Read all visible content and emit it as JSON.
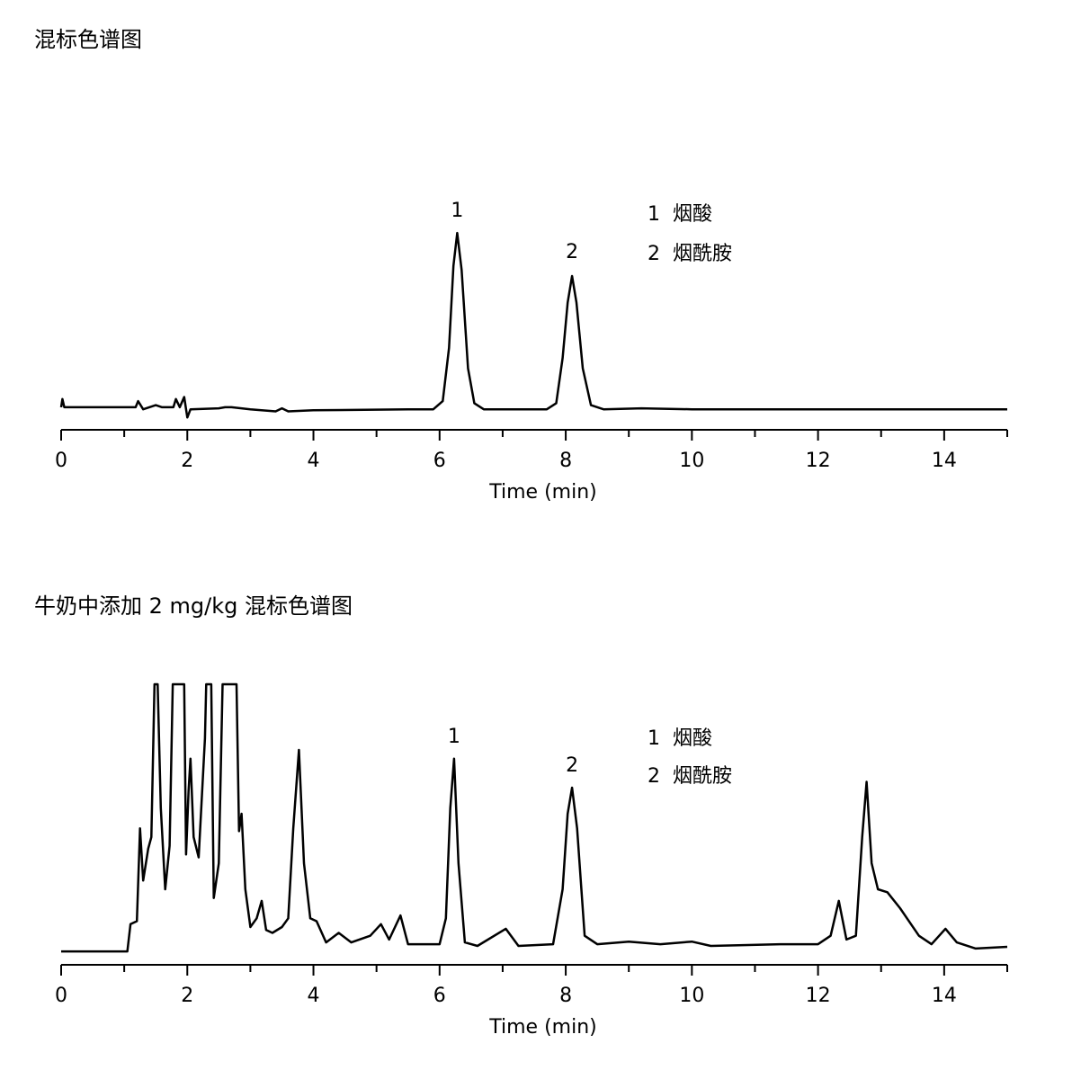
{
  "chart_data": [
    {
      "type": "line",
      "title": "混标色谱图",
      "xlabel": "Time (min)",
      "x": [
        0,
        0.02,
        0.05,
        1.0,
        1.18,
        1.22,
        1.3,
        1.5,
        1.6,
        1.78,
        1.82,
        1.88,
        1.95,
        2.0,
        2.05,
        2.5,
        2.6,
        2.7,
        3.0,
        3.4,
        3.5,
        3.6,
        4.0,
        5.5,
        5.9,
        6.05,
        6.15,
        6.22,
        6.28,
        6.35,
        6.45,
        6.55,
        6.7,
        7.7,
        7.85,
        7.95,
        8.03,
        8.1,
        8.17,
        8.27,
        8.4,
        8.6,
        9.2,
        10,
        15
      ],
      "series": [
        {
          "color": "#000000",
          "values": [
            11,
            15,
            11,
            11,
            11,
            14,
            10,
            12,
            11,
            11,
            15,
            11,
            16,
            6,
            10,
            10.5,
            11,
            11,
            10,
            9,
            10.5,
            9,
            9.5,
            10,
            10,
            14,
            40,
            80,
            96,
            78,
            30,
            13,
            10,
            10,
            13,
            35,
            62,
            75,
            62,
            30,
            12,
            10,
            10.5,
            10,
            10
          ]
        }
      ],
      "xlim": [
        0,
        15
      ],
      "xticks": [
        0,
        2,
        4,
        6,
        8,
        10,
        12,
        14
      ],
      "xminor_ticks": [
        1,
        3,
        5,
        7,
        9,
        11,
        13,
        15
      ],
      "ylim": [
        0,
        100
      ],
      "annotations": [
        {
          "text": "1",
          "x": 6.28
        },
        {
          "text": "2",
          "x": 8.1
        }
      ],
      "legend": [
        "1  烟酸",
        "2  烟酰胺"
      ]
    },
    {
      "type": "line",
      "title": "牛奶中添加 2 mg/kg 混标色谱图",
      "xlabel": "Time (min)",
      "x": [
        0,
        1.05,
        1.1,
        1.2,
        1.25,
        1.3,
        1.38,
        1.43,
        1.48,
        1.53,
        1.58,
        1.65,
        1.72,
        1.77,
        1.95,
        1.98,
        2.02,
        2.05,
        2.1,
        2.18,
        2.28,
        2.3,
        2.38,
        2.42,
        2.5,
        2.56,
        2.78,
        2.82,
        2.86,
        2.92,
        3.0,
        3.1,
        3.18,
        3.25,
        3.35,
        3.5,
        3.6,
        3.68,
        3.77,
        3.85,
        3.95,
        4.05,
        4.2,
        4.4,
        4.6,
        4.9,
        5.07,
        5.2,
        5.38,
        5.5,
        6.0,
        6.1,
        6.17,
        6.23,
        6.3,
        6.4,
        6.6,
        7.05,
        7.25,
        7.8,
        7.95,
        8.03,
        8.1,
        8.18,
        8.3,
        8.5,
        9.0,
        9.5,
        10.0,
        10.3,
        11.4,
        12.0,
        12.2,
        12.33,
        12.45,
        12.6,
        12.7,
        12.77,
        12.85,
        12.95,
        13.1,
        13.3,
        13.6,
        13.8,
        14.02,
        14.2,
        14.5,
        15
      ],
      "series": [
        {
          "color": "#000000",
          "values": [
            4.6,
            4.6,
            14,
            15,
            47,
            29,
            40,
            44,
            96.6,
            96.6,
            54,
            26,
            41,
            96.6,
            96.6,
            38,
            60,
            71,
            44,
            37,
            78,
            96.6,
            96.6,
            23,
            35,
            96.6,
            96.6,
            46,
            52,
            26,
            13,
            16,
            22,
            12,
            11,
            13,
            16,
            47,
            74,
            35,
            16,
            15,
            7.7,
            11,
            7.7,
            10,
            14,
            8.7,
            17,
            7.1,
            7.1,
            16,
            54,
            71,
            35,
            7.7,
            6.5,
            12.4,
            6.5,
            7.1,
            26,
            52,
            61,
            47,
            10,
            7.1,
            8,
            7.1,
            8,
            6.5,
            7.1,
            7.1,
            10,
            22,
            8.7,
            10,
            44,
            63,
            35,
            26,
            25,
            19.5,
            10,
            7.1,
            12.4,
            7.7,
            5.6,
            6.2
          ]
        }
      ],
      "xlim": [
        0,
        15
      ],
      "xticks": [
        0,
        2,
        4,
        6,
        8,
        10,
        12,
        14
      ],
      "xminor_ticks": [
        1,
        3,
        5,
        7,
        9,
        11,
        13,
        15
      ],
      "ylim": [
        0,
        100
      ],
      "annotations": [
        {
          "text": "1",
          "x": 6.23
        },
        {
          "text": "2",
          "x": 8.1
        }
      ],
      "legend": [
        "1  烟酸",
        "2  烟酰胺"
      ]
    }
  ]
}
